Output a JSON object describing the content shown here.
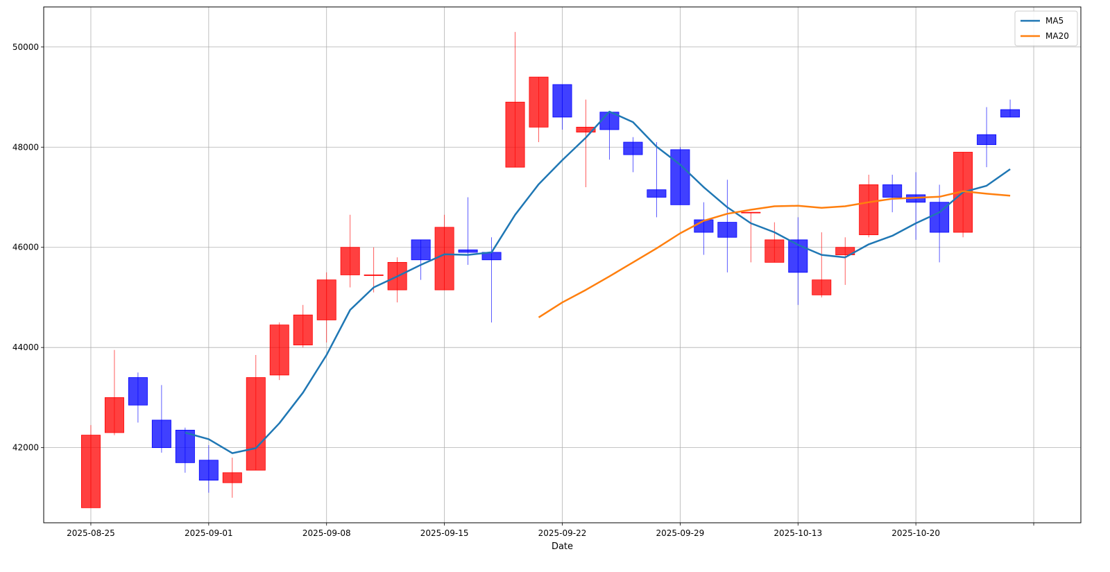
{
  "chart_data": {
    "type": "candlestick",
    "title": "",
    "xlabel": "Date",
    "ylabel": "",
    "ylim": [
      40500,
      50800
    ],
    "yticks": [
      {
        "value": 42000,
        "label": "42000"
      },
      {
        "value": 44000,
        "label": "44000"
      },
      {
        "value": 46000,
        "label": "46000"
      },
      {
        "value": 48000,
        "label": "48000"
      },
      {
        "value": 50000,
        "label": "50000"
      }
    ],
    "xticks": [
      {
        "index": 0,
        "label": "2025-08-25"
      },
      {
        "index": 5,
        "label": "2025-09-01"
      },
      {
        "index": 10,
        "label": "2025-09-08"
      },
      {
        "index": 15,
        "label": "2025-09-15"
      },
      {
        "index": 20,
        "label": "2025-09-22"
      },
      {
        "index": 25,
        "label": "2025-09-29"
      },
      {
        "index": 30,
        "label": "2025-10-13"
      },
      {
        "index": 35,
        "label": "2025-10-20"
      },
      {
        "index": 40,
        "label": ""
      }
    ],
    "x_range": [
      -2,
      42
    ],
    "grid": true,
    "legend_position": "top-right",
    "up_color": "#ff0000",
    "down_color": "#0000ff",
    "candles": [
      {
        "o": 40800,
        "h": 42450,
        "l": 40800,
        "c": 42250
      },
      {
        "o": 42300,
        "h": 43950,
        "l": 42250,
        "c": 43000
      },
      {
        "o": 43400,
        "h": 43500,
        "l": 42500,
        "c": 42850
      },
      {
        "o": 42550,
        "h": 43250,
        "l": 41900,
        "c": 42000
      },
      {
        "o": 42350,
        "h": 42400,
        "l": 41500,
        "c": 41700
      },
      {
        "o": 41750,
        "h": 42050,
        "l": 41100,
        "c": 41350
      },
      {
        "o": 41300,
        "h": 41800,
        "l": 41000,
        "c": 41500
      },
      {
        "o": 41550,
        "h": 43850,
        "l": 41550,
        "c": 43400
      },
      {
        "o": 43450,
        "h": 44500,
        "l": 43350,
        "c": 44450
      },
      {
        "o": 44050,
        "h": 44850,
        "l": 44000,
        "c": 44650
      },
      {
        "o": 44550,
        "h": 45500,
        "l": 44100,
        "c": 45350
      },
      {
        "o": 45450,
        "h": 46650,
        "l": 45200,
        "c": 46000
      },
      {
        "o": 45450,
        "h": 46000,
        "l": 45100,
        "c": 45450
      },
      {
        "o": 45150,
        "h": 45800,
        "l": 44900,
        "c": 45700
      },
      {
        "o": 46150,
        "h": 46150,
        "l": 45350,
        "c": 45750
      },
      {
        "o": 45150,
        "h": 46650,
        "l": 45150,
        "c": 46400
      },
      {
        "o": 45950,
        "h": 47000,
        "l": 45650,
        "c": 45900
      },
      {
        "o": 45900,
        "h": 46200,
        "l": 44500,
        "c": 45750
      },
      {
        "o": 47600,
        "h": 50300,
        "l": 47600,
        "c": 48900
      },
      {
        "o": 48400,
        "h": 49400,
        "l": 48100,
        "c": 49400
      },
      {
        "o": 49250,
        "h": 49250,
        "l": 48350,
        "c": 48600
      },
      {
        "o": 48300,
        "h": 48950,
        "l": 47200,
        "c": 48400
      },
      {
        "o": 48700,
        "h": 48700,
        "l": 47750,
        "c": 48350
      },
      {
        "o": 48100,
        "h": 48200,
        "l": 47500,
        "c": 47850
      },
      {
        "o": 47150,
        "h": 48100,
        "l": 46600,
        "c": 47000
      },
      {
        "o": 47950,
        "h": 48000,
        "l": 46850,
        "c": 46850
      },
      {
        "o": 46550,
        "h": 46900,
        "l": 45850,
        "c": 46300
      },
      {
        "o": 46500,
        "h": 47350,
        "l": 45500,
        "c": 46200
      },
      {
        "o": 46700,
        "h": 46700,
        "l": 45700,
        "c": 46700
      },
      {
        "o": 45700,
        "h": 46500,
        "l": 45700,
        "c": 46150
      },
      {
        "o": 46150,
        "h": 46600,
        "l": 44850,
        "c": 45500
      },
      {
        "o": 45050,
        "h": 46300,
        "l": 45000,
        "c": 45350
      },
      {
        "o": 45850,
        "h": 46200,
        "l": 45250,
        "c": 46000
      },
      {
        "o": 46250,
        "h": 47450,
        "l": 46200,
        "c": 47250
      },
      {
        "o": 47250,
        "h": 47450,
        "l": 46700,
        "c": 47000
      },
      {
        "o": 47050,
        "h": 47500,
        "l": 46150,
        "c": 46900
      },
      {
        "o": 46900,
        "h": 47250,
        "l": 45700,
        "c": 46300
      },
      {
        "o": 46300,
        "h": 47900,
        "l": 46200,
        "c": 47900
      },
      {
        "o": 48250,
        "h": 48800,
        "l": 47600,
        "c": 48050
      },
      {
        "o": 48750,
        "h": 48950,
        "l": 48600,
        "c": 48600
      }
    ],
    "series": [
      {
        "name": "MA5",
        "color": "#1f77b4",
        "start_index": 4,
        "values": [
          42300,
          42170,
          41890,
          41990,
          42490,
          43100,
          43850,
          44750,
          45200,
          45420,
          45650,
          45860,
          45850,
          45900,
          46650,
          47260,
          47740,
          48190,
          48710,
          48500,
          48010,
          47650,
          47200,
          46800,
          46480,
          46300,
          46050,
          45850,
          45800,
          46060,
          46230,
          46480,
          46700,
          47100,
          47230,
          47560
        ]
      },
      {
        "name": "MA20",
        "color": "#ff7f0e",
        "start_index": 19,
        "values": [
          44600,
          44900,
          45150,
          45420,
          45700,
          45980,
          46280,
          46530,
          46670,
          46750,
          46820,
          46830,
          46790,
          46820,
          46900,
          46970,
          46990,
          47010,
          47120,
          47070,
          47030
        ]
      }
    ]
  }
}
